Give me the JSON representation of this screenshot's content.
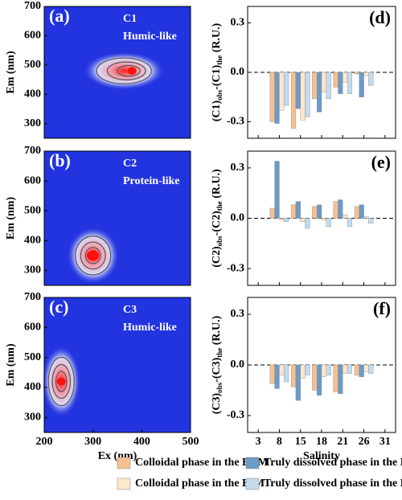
{
  "chart_data": [
    {
      "type": "contour",
      "label": "(a)",
      "component": "C1",
      "subtitle": "Humic-like",
      "ylabel": "Em (nm)",
      "xlim": [
        200,
        500
      ],
      "ylim": [
        250,
        700
      ],
      "yticks": [
        300,
        400,
        500,
        600,
        700
      ],
      "x": [
        380
      ],
      "y": [
        480
      ]
    },
    {
      "type": "contour",
      "label": "(b)",
      "component": "C2",
      "subtitle": "Protein-like",
      "ylabel": "Em (nm)",
      "xlim": [
        200,
        500
      ],
      "ylim": [
        250,
        700
      ],
      "yticks": [
        300,
        400,
        500,
        600,
        700
      ],
      "x": [
        300
      ],
      "y": [
        350
      ]
    },
    {
      "type": "contour",
      "label": "(c)",
      "component": "C3",
      "subtitle": "Humic-like",
      "ylabel": "Em (nm)",
      "xlabel": "Ex (nm)",
      "xlim": [
        200,
        500
      ],
      "ylim": [
        250,
        700
      ],
      "yticks": [
        300,
        400,
        500,
        600,
        700
      ],
      "xticks": [
        200,
        300,
        400,
        500
      ],
      "x": [
        235
      ],
      "y": [
        420
      ]
    },
    {
      "type": "bar",
      "label": "(d)",
      "ylabel": [
        "(C1)",
        "obs",
        "-(C1)",
        "the",
        " (R.U.)"
      ],
      "categories": [
        null,
        null,
        null,
        null,
        null,
        null,
        null
      ],
      "ylim": [
        -0.4,
        0.4
      ],
      "yticks": [
        -0.3,
        {
          "value": 0,
          "label": "0.0"
        },
        0.3
      ],
      "series": [
        {
          "name": "Colloidal phase in the BAM",
          "color": "#f7c08f",
          "values": [
            null,
            -0.3,
            -0.34,
            -0.16,
            -0.09,
            -0.01,
            null
          ]
        },
        {
          "name": "Truly dissolved phase in the BAM",
          "color": "#6b9bc8",
          "values": [
            null,
            -0.31,
            -0.22,
            -0.24,
            -0.13,
            -0.15,
            null
          ]
        },
        {
          "name": "Colloidal phase in the BIM",
          "color": "#fde6cc",
          "values": [
            null,
            -0.23,
            -0.29,
            -0.12,
            -0.06,
            -0.02,
            null
          ]
        },
        {
          "name": "Truly dissolved phase in the BIM",
          "color": "#c4dbee",
          "values": [
            null,
            -0.2,
            -0.27,
            -0.16,
            -0.13,
            -0.08,
            null
          ]
        }
      ]
    },
    {
      "type": "bar",
      "label": "(e)",
      "ylabel": [
        "(C2)",
        "obs",
        "-(C2)",
        "the",
        " (R.U.)"
      ],
      "categories": [
        null,
        null,
        null,
        null,
        null,
        null,
        null
      ],
      "ylim": [
        -0.4,
        0.4
      ],
      "yticks": [
        -0.3,
        {
          "value": 0,
          "label": "0.0"
        },
        0.3
      ],
      "series": [
        {
          "color": "#f7c08f",
          "values": [
            null,
            0.06,
            0.08,
            0.07,
            0.1,
            0.07,
            null
          ]
        },
        {
          "color": "#6b9bc8",
          "values": [
            null,
            0.34,
            0.1,
            0.08,
            0.11,
            0.08,
            null
          ]
        },
        {
          "color": "#fde6cc",
          "values": [
            null,
            -0.01,
            -0.02,
            -0.01,
            0.02,
            0.01,
            null
          ]
        },
        {
          "color": "#c4dbee",
          "values": [
            null,
            -0.02,
            -0.06,
            -0.05,
            -0.05,
            -0.03,
            null
          ]
        }
      ]
    },
    {
      "type": "bar",
      "label": "(f)",
      "ylabel": [
        "(C3)",
        "obs",
        "-(C3)",
        "the",
        " (R.U.)"
      ],
      "xlabel": "Salinity",
      "categories": [
        "3",
        "8",
        "15",
        "18",
        "21",
        "26",
        "31"
      ],
      "ylim": [
        -0.4,
        0.4
      ],
      "yticks": [
        -0.3,
        {
          "value": 0,
          "label": "0.0"
        },
        0.3
      ],
      "series": [
        {
          "color": "#f7c08f",
          "values": [
            null,
            -0.11,
            -0.13,
            -0.15,
            -0.16,
            -0.06,
            null
          ]
        },
        {
          "color": "#6b9bc8",
          "values": [
            null,
            -0.14,
            -0.21,
            -0.18,
            -0.17,
            -0.07,
            null
          ]
        },
        {
          "color": "#fde6cc",
          "values": [
            null,
            -0.06,
            -0.08,
            -0.07,
            -0.05,
            -0.04,
            null
          ]
        },
        {
          "color": "#c4dbee",
          "values": [
            null,
            -0.1,
            -0.06,
            -0.06,
            -0.05,
            -0.05,
            null
          ]
        }
      ]
    }
  ]
}
